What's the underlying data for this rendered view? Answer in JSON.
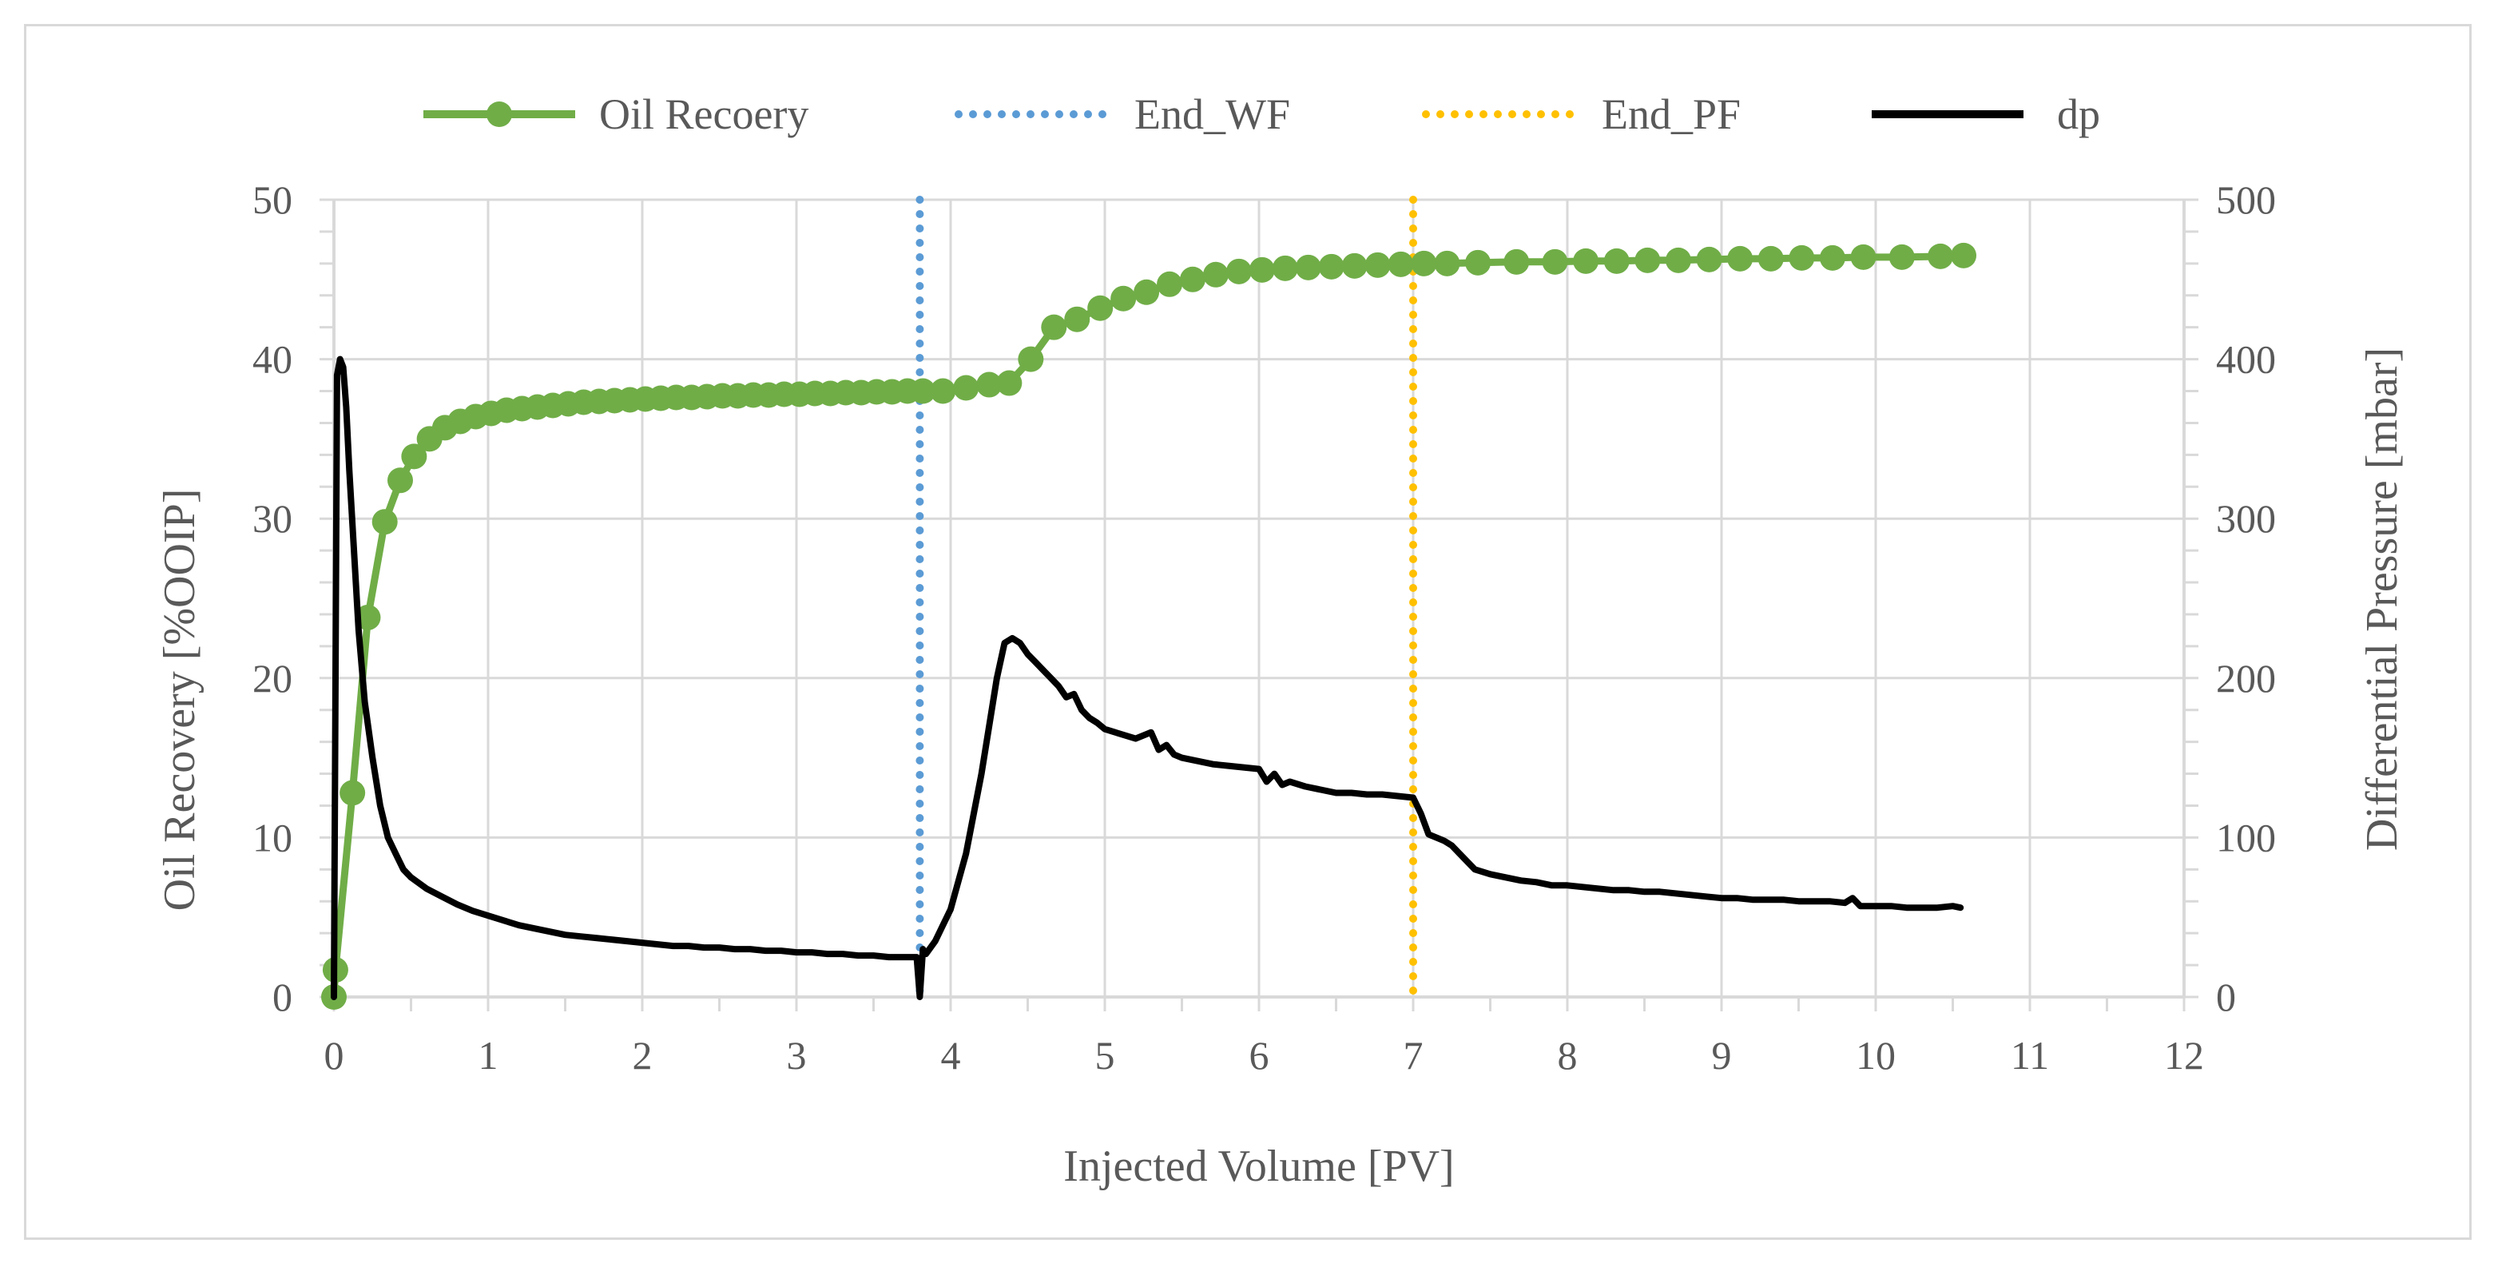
{
  "chart_data": {
    "type": "line",
    "title": "",
    "xlabel": "Injected Volume [PV]",
    "ylabel": "Oil Recovery [%OOIP]",
    "y2label": "Differential Pressure [mbar]",
    "xlim": [
      0,
      12
    ],
    "ylim": [
      0,
      50
    ],
    "y2lim": [
      0,
      500
    ],
    "x_ticks": [
      "0",
      "1",
      "2",
      "3",
      "4",
      "5",
      "6",
      "7",
      "8",
      "9",
      "10",
      "11",
      "12"
    ],
    "y_ticks": [
      "0",
      "10",
      "20",
      "30",
      "40",
      "50"
    ],
    "y2_ticks": [
      "0",
      "100",
      "200",
      "300",
      "400",
      "500"
    ],
    "grid": true,
    "legend_position": "top",
    "colors": {
      "oil": "#70ad47",
      "end_wf": "#5b9bd5",
      "end_pf": "#ffc000",
      "dp": "#000000",
      "grid": "#d9d9d9",
      "text": "#595959"
    },
    "legend": [
      {
        "key": "oil",
        "label": "Oil Recoery"
      },
      {
        "key": "end_wf",
        "label": "End_WF"
      },
      {
        "key": "end_pf",
        "label": "End_PF"
      },
      {
        "key": "dp",
        "label": "dp"
      }
    ],
    "series": [
      {
        "name": "Oil Recoery",
        "axis": "left",
        "style": "line-marker",
        "x": [
          0,
          0.01,
          0.12,
          0.22,
          0.33,
          0.43,
          0.52,
          0.62,
          0.72,
          0.82,
          0.92,
          1.02,
          1.12,
          1.22,
          1.32,
          1.42,
          1.52,
          1.62,
          1.72,
          1.82,
          1.92,
          2.02,
          2.12,
          2.22,
          2.32,
          2.42,
          2.52,
          2.62,
          2.72,
          2.82,
          2.92,
          3.02,
          3.12,
          3.22,
          3.32,
          3.42,
          3.52,
          3.62,
          3.72,
          3.82,
          3.95,
          4.1,
          4.25,
          4.38,
          4.52,
          4.67,
          4.82,
          4.97,
          5.12,
          5.27,
          5.42,
          5.57,
          5.72,
          5.87,
          6.02,
          6.17,
          6.32,
          6.47,
          6.62,
          6.77,
          6.92,
          7.07,
          7.22,
          7.42,
          7.67,
          7.92,
          8.12,
          8.32,
          8.52,
          8.72,
          8.92,
          9.12,
          9.32,
          9.52,
          9.72,
          9.92,
          10.17,
          10.42,
          10.57
        ],
        "values": [
          0,
          1.7,
          12.8,
          23.8,
          29.8,
          32.4,
          33.9,
          35.0,
          35.7,
          36.1,
          36.4,
          36.6,
          36.8,
          36.9,
          37.0,
          37.1,
          37.2,
          37.3,
          37.35,
          37.4,
          37.45,
          37.5,
          37.55,
          37.6,
          37.6,
          37.65,
          37.7,
          37.7,
          37.75,
          37.75,
          37.8,
          37.8,
          37.85,
          37.85,
          37.9,
          37.9,
          37.95,
          37.95,
          38.0,
          38.0,
          38.0,
          38.2,
          38.4,
          38.5,
          40.0,
          42.0,
          42.5,
          43.2,
          43.8,
          44.2,
          44.7,
          45.0,
          45.3,
          45.5,
          45.6,
          45.7,
          45.75,
          45.8,
          45.85,
          45.9,
          45.95,
          46.0,
          46.0,
          46.05,
          46.1,
          46.1,
          46.15,
          46.15,
          46.2,
          46.2,
          46.25,
          46.3,
          46.3,
          46.35,
          46.35,
          46.4,
          46.4,
          46.45,
          46.5
        ]
      },
      {
        "name": "dp",
        "axis": "right",
        "style": "line",
        "x": [
          0,
          0.02,
          0.04,
          0.06,
          0.08,
          0.1,
          0.13,
          0.16,
          0.2,
          0.25,
          0.3,
          0.35,
          0.4,
          0.45,
          0.5,
          0.6,
          0.7,
          0.8,
          0.9,
          1.0,
          1.1,
          1.2,
          1.3,
          1.4,
          1.5,
          1.6,
          1.7,
          1.8,
          1.9,
          2.0,
          2.1,
          2.2,
          2.3,
          2.4,
          2.5,
          2.6,
          2.7,
          2.8,
          2.9,
          3.0,
          3.1,
          3.2,
          3.3,
          3.4,
          3.5,
          3.6,
          3.7,
          3.78,
          3.8,
          3.82,
          3.84,
          3.9,
          4.0,
          4.1,
          4.2,
          4.3,
          4.35,
          4.4,
          4.45,
          4.5,
          4.55,
          4.6,
          4.65,
          4.7,
          4.75,
          4.8,
          4.85,
          4.9,
          4.95,
          5.0,
          5.1,
          5.2,
          5.3,
          5.35,
          5.4,
          5.45,
          5.5,
          5.6,
          5.7,
          5.8,
          5.9,
          6.0,
          6.05,
          6.1,
          6.15,
          6.2,
          6.3,
          6.4,
          6.5,
          6.6,
          6.7,
          6.8,
          6.9,
          7.0,
          7.05,
          7.1,
          7.15,
          7.2,
          7.25,
          7.3,
          7.35,
          7.4,
          7.5,
          7.6,
          7.7,
          7.8,
          7.9,
          8.0,
          8.1,
          8.2,
          8.3,
          8.4,
          8.5,
          8.6,
          8.7,
          8.8,
          8.9,
          9.0,
          9.1,
          9.2,
          9.3,
          9.4,
          9.5,
          9.6,
          9.7,
          9.8,
          9.85,
          9.9,
          10.0,
          10.1,
          10.2,
          10.3,
          10.4,
          10.5,
          10.55
        ],
        "values": [
          0,
          390,
          400,
          395,
          370,
          330,
          280,
          230,
          185,
          150,
          120,
          100,
          90,
          80,
          75,
          68,
          63,
          58,
          54,
          51,
          48,
          45,
          43,
          41,
          39,
          38,
          37,
          36,
          35,
          34,
          33,
          32,
          32,
          31,
          31,
          30,
          30,
          29,
          29,
          28,
          28,
          27,
          27,
          26,
          26,
          25,
          25,
          25,
          0,
          30,
          27,
          35,
          55,
          90,
          140,
          200,
          222,
          225,
          222,
          215,
          210,
          205,
          200,
          195,
          188,
          190,
          180,
          175,
          172,
          168,
          165,
          162,
          166,
          155,
          158,
          152,
          150,
          148,
          146,
          145,
          144,
          143,
          135,
          140,
          133,
          135,
          132,
          130,
          128,
          128,
          127,
          127,
          126,
          125,
          115,
          102,
          100,
          98,
          95,
          90,
          85,
          80,
          77,
          75,
          73,
          72,
          70,
          70,
          69,
          68,
          67,
          67,
          66,
          66,
          65,
          64,
          63,
          62,
          62,
          61,
          61,
          61,
          60,
          60,
          60,
          59,
          62,
          57,
          57,
          57,
          56,
          56,
          56,
          57,
          56
        ]
      }
    ],
    "vertical_lines": [
      {
        "name": "End_WF",
        "x": 3.8,
        "style": "dotted"
      },
      {
        "name": "End_PF",
        "x": 7.0,
        "style": "dotted"
      }
    ]
  }
}
